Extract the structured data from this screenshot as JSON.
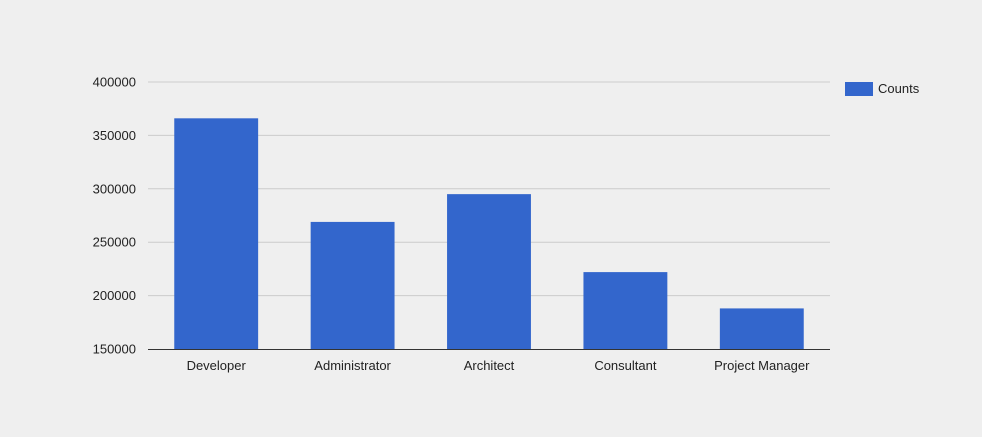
{
  "chart_data": {
    "type": "bar",
    "categories": [
      "Developer",
      "Administrator",
      "Architect",
      "Consultant",
      "Project Manager"
    ],
    "series": [
      {
        "name": "Counts",
        "values": [
          366000,
          269000,
          295000,
          222000,
          188000
        ]
      }
    ],
    "ylim": [
      150000,
      400000
    ],
    "yticks": [
      150000,
      200000,
      250000,
      300000,
      350000,
      400000
    ],
    "ytick_labels": [
      "150000",
      "200000",
      "250000",
      "300000",
      "350000",
      "400000"
    ],
    "grid": true,
    "legend": "right",
    "colors": {
      "bar": "#3366cc",
      "grid": "#cccccc",
      "axis": "#333333",
      "background": "#efefef"
    }
  }
}
